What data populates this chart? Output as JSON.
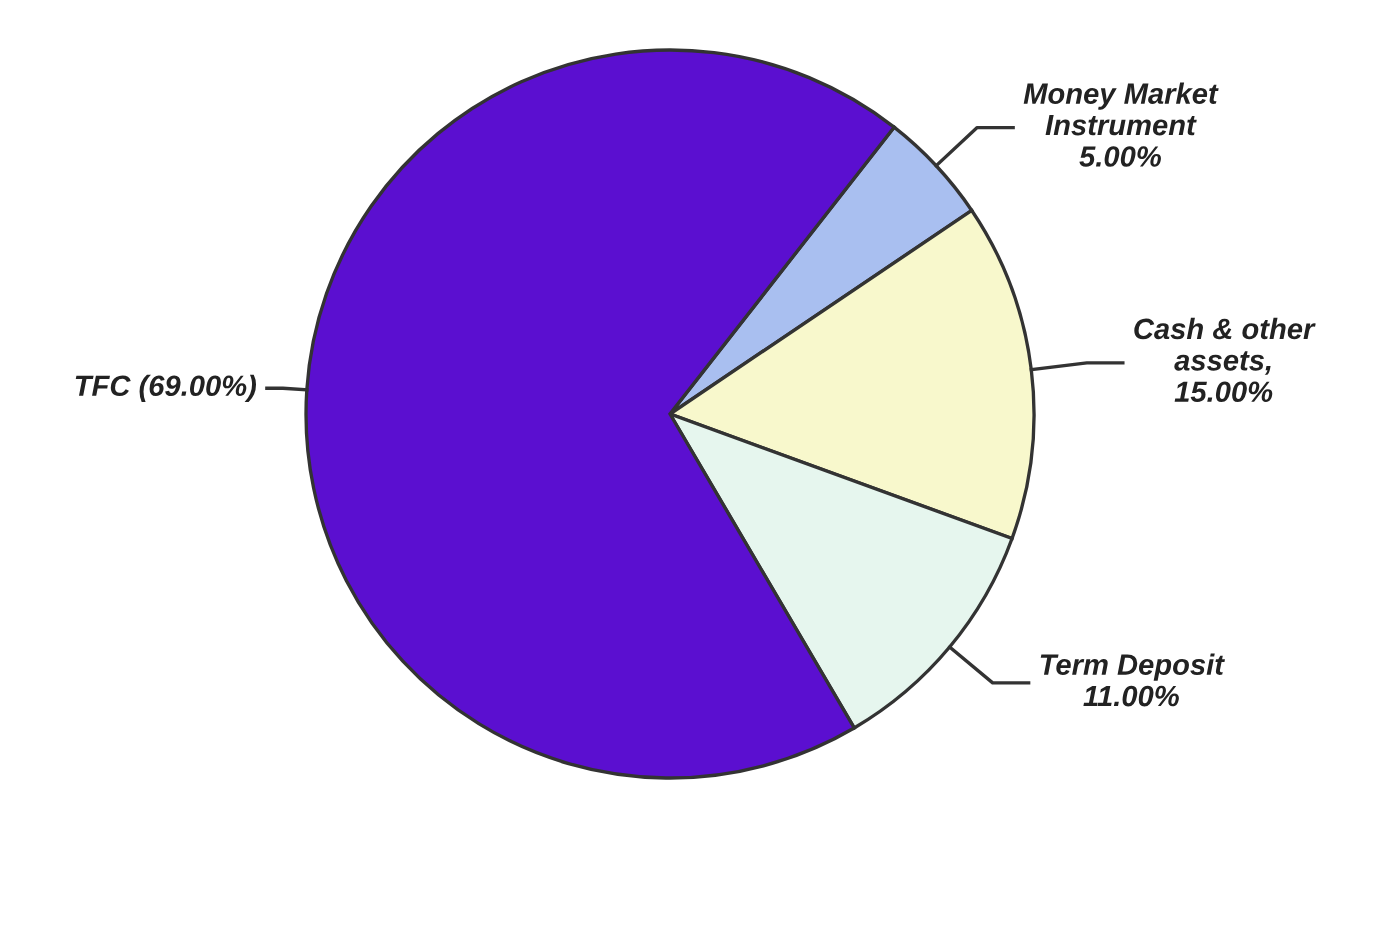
{
  "chart_data": {
    "type": "pie",
    "categories": [
      "Money Market\nInstrument\n5.00%",
      "Cash & other\nassets,\n15.00%",
      "Term Deposit\n11.00%",
      "TFC (69.00%)"
    ],
    "values": [
      5,
      15,
      11,
      69
    ],
    "colors": [
      "#a9bff0",
      "#f8f8cc",
      "#e6f6ee",
      "#5b0fd0"
    ]
  }
}
